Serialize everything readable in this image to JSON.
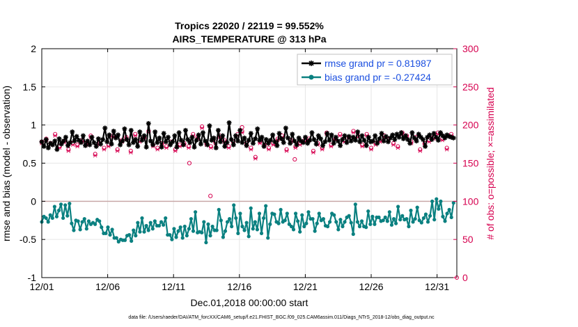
{
  "chart_data": {
    "type": "line",
    "title": "Tropics 22020 / 22119 = 99.552%",
    "subtitle": "AIRS_TEMPERATURE @ 313 hPa",
    "xlabel": "Dec.01,2018 00:00:00 start",
    "ylabel": "rmse and bias (model - observation)",
    "y2label": "# of obs: o=possible; ×=assimilated",
    "footnote": "data file: /Users/raeder/DAI/ATM_forcXX/CAM6_setup/f.e21.FHIST_BGC.f09_025.CAM6assim.011/Diags_NTrS_2018-12/obs_diag_output.nc",
    "xlim": [
      1,
      32.5
    ],
    "ylim": [
      -1,
      2
    ],
    "y2lim": [
      0,
      300
    ],
    "x_ticks": [
      1,
      6,
      11,
      16,
      21,
      26,
      31
    ],
    "x_tick_labels": [
      "12/01",
      "12/06",
      "12/11",
      "12/16",
      "12/21",
      "12/26",
      "12/31"
    ],
    "y_ticks": [
      -1,
      -0.5,
      0,
      0.5,
      1,
      1.5,
      2
    ],
    "y_tick_labels": [
      "-1",
      "-0.5",
      "0",
      "0.5",
      "1",
      "1.5",
      "2"
    ],
    "y2_ticks": [
      0,
      50,
      100,
      150,
      200,
      250,
      300
    ],
    "y2_tick_labels": [
      "0",
      "50",
      "100",
      "150",
      "200",
      "250",
      "300"
    ],
    "grid": true,
    "legend_position": "top-right",
    "series": [
      {
        "name": "rmse grand pr = 0.81987",
        "color": "#000000",
        "marker": "star",
        "values": [
          0.78,
          0.72,
          0.81,
          0.7,
          0.76,
          0.74,
          0.79,
          0.68,
          0.82,
          0.75,
          0.79,
          0.84,
          0.73,
          0.77,
          0.91,
          0.79,
          0.85,
          0.8,
          0.77,
          0.86,
          0.73,
          0.79,
          0.74,
          0.84,
          0.77,
          0.72,
          0.82,
          0.75,
          0.81,
          0.96,
          0.78,
          0.87,
          0.75,
          0.92,
          0.83,
          0.87,
          0.74,
          0.79,
          0.95,
          0.81,
          0.74,
          0.93,
          0.77,
          0.81,
          0.72,
          0.91,
          0.8,
          0.86,
          0.71,
          1.02,
          0.79,
          0.74,
          0.91,
          0.77,
          0.83,
          0.71,
          0.89,
          0.78,
          0.84,
          0.74,
          0.78,
          0.86,
          0.71,
          0.9,
          0.8,
          0.74,
          0.93,
          0.81,
          0.77,
          0.84,
          0.71,
          0.8,
          0.87,
          0.75,
          0.9,
          0.79,
          0.74,
          0.99,
          0.8,
          0.83,
          0.7,
          0.93,
          0.78,
          0.86,
          0.72,
          0.77,
          1.03,
          0.81,
          0.74,
          0.86,
          0.79,
          0.93,
          0.77,
          0.83,
          0.73,
          0.8,
          0.89,
          0.76,
          0.82,
          0.95,
          0.8,
          0.84,
          0.72,
          0.81,
          0.76,
          0.8,
          0.87,
          0.78,
          0.73,
          0.89,
          0.82,
          0.77,
          0.96,
          0.83,
          0.76,
          0.88,
          0.79,
          0.74,
          0.83,
          0.79,
          0.77,
          0.84,
          0.76,
          0.8,
          0.9,
          0.81,
          0.75,
          0.86,
          0.82,
          0.73,
          0.78,
          0.89,
          0.8,
          0.87,
          0.76,
          0.84,
          0.79,
          0.73,
          0.81,
          0.86,
          0.77,
          0.85,
          0.79,
          0.84,
          0.8,
          0.91,
          0.78,
          0.86,
          0.8,
          0.73,
          0.84,
          0.78,
          0.79,
          0.86,
          0.76,
          0.82,
          0.89,
          0.79,
          0.85,
          0.78,
          0.83,
          0.87,
          0.81,
          0.88,
          0.84,
          0.9,
          0.82,
          0.86,
          0.81,
          0.76,
          0.9,
          0.83,
          0.79,
          0.88,
          0.84,
          0.81,
          0.72,
          0.84,
          0.87,
          0.81,
          0.89,
          0.84,
          0.8,
          0.9,
          0.86,
          0.83,
          0.87,
          0.85,
          0.84,
          0.83
        ]
      },
      {
        "name": "bias grand pr = -0.27424",
        "color": "#0a8080",
        "marker": "circle",
        "values": [
          -0.27,
          -0.2,
          -0.22,
          -0.27,
          -0.18,
          -0.22,
          -0.07,
          -0.2,
          -0.12,
          -0.04,
          -0.22,
          -0.05,
          -0.19,
          -0.03,
          -0.29,
          -0.38,
          -0.25,
          -0.26,
          -0.37,
          -0.27,
          -0.23,
          -0.36,
          -0.26,
          -0.3,
          -0.28,
          -0.3,
          -0.24,
          -0.26,
          -0.34,
          -0.42,
          -0.42,
          -0.34,
          -0.44,
          -0.37,
          -0.48,
          -0.48,
          -0.53,
          -0.5,
          -0.51,
          -0.51,
          -0.45,
          -0.44,
          -0.52,
          -0.38,
          -0.45,
          -0.28,
          -0.4,
          -0.22,
          -0.4,
          -0.32,
          -0.38,
          -0.28,
          -0.36,
          -0.26,
          -0.32,
          -0.32,
          -0.27,
          -0.31,
          -0.22,
          -0.44,
          -0.44,
          -0.5,
          -0.36,
          -0.47,
          -0.39,
          -0.34,
          -0.48,
          -0.33,
          -0.45,
          -0.36,
          -0.23,
          -0.39,
          -0.14,
          -0.41,
          -0.4,
          -0.41,
          -0.27,
          -0.54,
          -0.3,
          -0.45,
          -0.33,
          -0.38,
          -0.38,
          -0.11,
          -0.25,
          -0.47,
          -0.39,
          -0.27,
          -0.23,
          -0.33,
          -0.05,
          -0.22,
          -0.42,
          -0.16,
          -0.33,
          -0.38,
          -0.28,
          -0.46,
          -0.09,
          -0.36,
          -0.27,
          -0.37,
          -0.16,
          -0.42,
          -0.22,
          -0.06,
          -0.48,
          -0.3,
          -0.16,
          -0.17,
          -0.27,
          -0.29,
          -0.11,
          -0.27,
          -0.25,
          -0.16,
          -0.3,
          -0.33,
          -0.37,
          -0.16,
          -0.26,
          -0.4,
          -0.18,
          -0.33,
          -0.29,
          -0.14,
          -0.23,
          -0.23,
          -0.39,
          -0.29,
          -0.16,
          -0.25,
          -0.23,
          -0.32,
          -0.33,
          -0.27,
          -0.16,
          -0.18,
          -0.27,
          -0.37,
          -0.24,
          -0.33,
          -0.27,
          -0.21,
          -0.19,
          -0.28,
          -0.43,
          -0.04,
          -0.27,
          -0.33,
          -0.26,
          -0.33,
          -0.34,
          -0.13,
          -0.3,
          -0.2,
          -0.3,
          -0.21,
          -0.21,
          -0.26,
          -0.25,
          -0.21,
          -0.26,
          -0.14,
          -0.31,
          -0.23,
          -0.29,
          -0.07,
          -0.24,
          -0.19,
          -0.24,
          -0.23,
          -0.33,
          -0.12,
          -0.27,
          -0.23,
          -0.08,
          -0.25,
          -0.28,
          -0.22,
          -0.17,
          -0.27,
          -0.19,
          0.0,
          -0.24,
          0.03,
          -0.1,
          0.0,
          -0.2,
          -0.26,
          -0.16,
          -0.11,
          -0.21,
          -0.02
        ]
      },
      {
        "name": "possible obs",
        "axis": "right",
        "color": "#d6004f",
        "marker": "o",
        "values": [
          178,
          174,
          182,
          200,
          176,
          168,
          188,
          180,
          172,
          186,
          179,
          184,
          168,
          192,
          176,
          188,
          174,
          166,
          180,
          190,
          176,
          170,
          186,
          178,
          162,
          192,
          176,
          184,
          170,
          182,
          174,
          194,
          186,
          178,
          168,
          190,
          180,
          174,
          184,
          176,
          166,
          178,
          188,
          172,
          180,
          162,
          184,
          176,
          192,
          180,
          174,
          186,
          170,
          182,
          176,
          194,
          172,
          188,
          178,
          180,
          168,
          186,
          174,
          190,
          176,
          180,
          172,
          166,
          188,
          178,
          184,
          174,
          198,
          180,
          176,
          188,
          172,
          182,
          178,
          164,
          186,
          176,
          180,
          190,
          172,
          184,
          178,
          166,
          188,
          174,
          192,
          180,
          176,
          186,
          170,
          182,
          158,
          184,
          178,
          188,
          174,
          180,
          170,
          186,
          176,
          192,
          182,
          174,
          186,
          178,
          168,
          188,
          180,
          184,
          172,
          190,
          176,
          186,
          180,
          174,
          182,
          178,
          166,
          188,
          176,
          184,
          170,
          180,
          190,
          178,
          174,
          186,
          182,
          168,
          188,
          176,
          180,
          172,
          184,
          178,
          192,
          176,
          186,
          180,
          174,
          182,
          188,
          178,
          170,
          184,
          176,
          190,
          180,
          174,
          186,
          178,
          182,
          188,
          176,
          184,
          172,
          180,
          190,
          176,
          186,
          182,
          178,
          174,
          184,
          180,
          168,
          186,
          176,
          188,
          180,
          174,
          184,
          178,
          190,
          176,
          182,
          186,
          170,
          180,
          188,
          176
        ]
      },
      {
        "name": "assimilated obs",
        "axis": "right",
        "color": "#d6004f",
        "marker": "x",
        "values": [
          176,
          172,
          180,
          198,
          174,
          166,
          186,
          178,
          170,
          184,
          177,
          182,
          166,
          190,
          174,
          186,
          172,
          164,
          178,
          188,
          174,
          168,
          184,
          176,
          160,
          190,
          174,
          182,
          168,
          180,
          172,
          192,
          184,
          176,
          166,
          188,
          178,
          172,
          182,
          174,
          164,
          176,
          186,
          170,
          178,
          160,
          182,
          174,
          190,
          178,
          172,
          184,
          168,
          180,
          174,
          192,
          170,
          186,
          176,
          178,
          166,
          184,
          172,
          188,
          174,
          178,
          170,
          164,
          186,
          176,
          182,
          172,
          196,
          178,
          174,
          186,
          170,
          180,
          176,
          162,
          184,
          174,
          178,
          188,
          170,
          182,
          176,
          164,
          186,
          172,
          190,
          178,
          174,
          184,
          168,
          180,
          156,
          182,
          176,
          186,
          172,
          178,
          168,
          184,
          174,
          190,
          180,
          172,
          184,
          176,
          166,
          186,
          178,
          182,
          170,
          188,
          174,
          184,
          178,
          172,
          180,
          176,
          164,
          186,
          174,
          182,
          168,
          178,
          188,
          176,
          172,
          184,
          180,
          166,
          186,
          174,
          178,
          170,
          182,
          176,
          190,
          174,
          184,
          178,
          172,
          180,
          186,
          176,
          168,
          182,
          174,
          188,
          178,
          172,
          184,
          176,
          180,
          186,
          174,
          182,
          170,
          178,
          188,
          174,
          184,
          180,
          176,
          172,
          182,
          178,
          166,
          184,
          174,
          186,
          178,
          172,
          182,
          176,
          188,
          174,
          180,
          184,
          168,
          178,
          186,
          174
        ]
      }
    ],
    "outliers": [
      {
        "x": 12.2,
        "y2": 150,
        "marker": "o"
      },
      {
        "x": 13.8,
        "y2": 107,
        "marker": "o"
      },
      {
        "x": 16.2,
        "y2": 197,
        "marker": "o"
      },
      {
        "x": 20.2,
        "y2": 155,
        "marker": "o"
      }
    ]
  }
}
